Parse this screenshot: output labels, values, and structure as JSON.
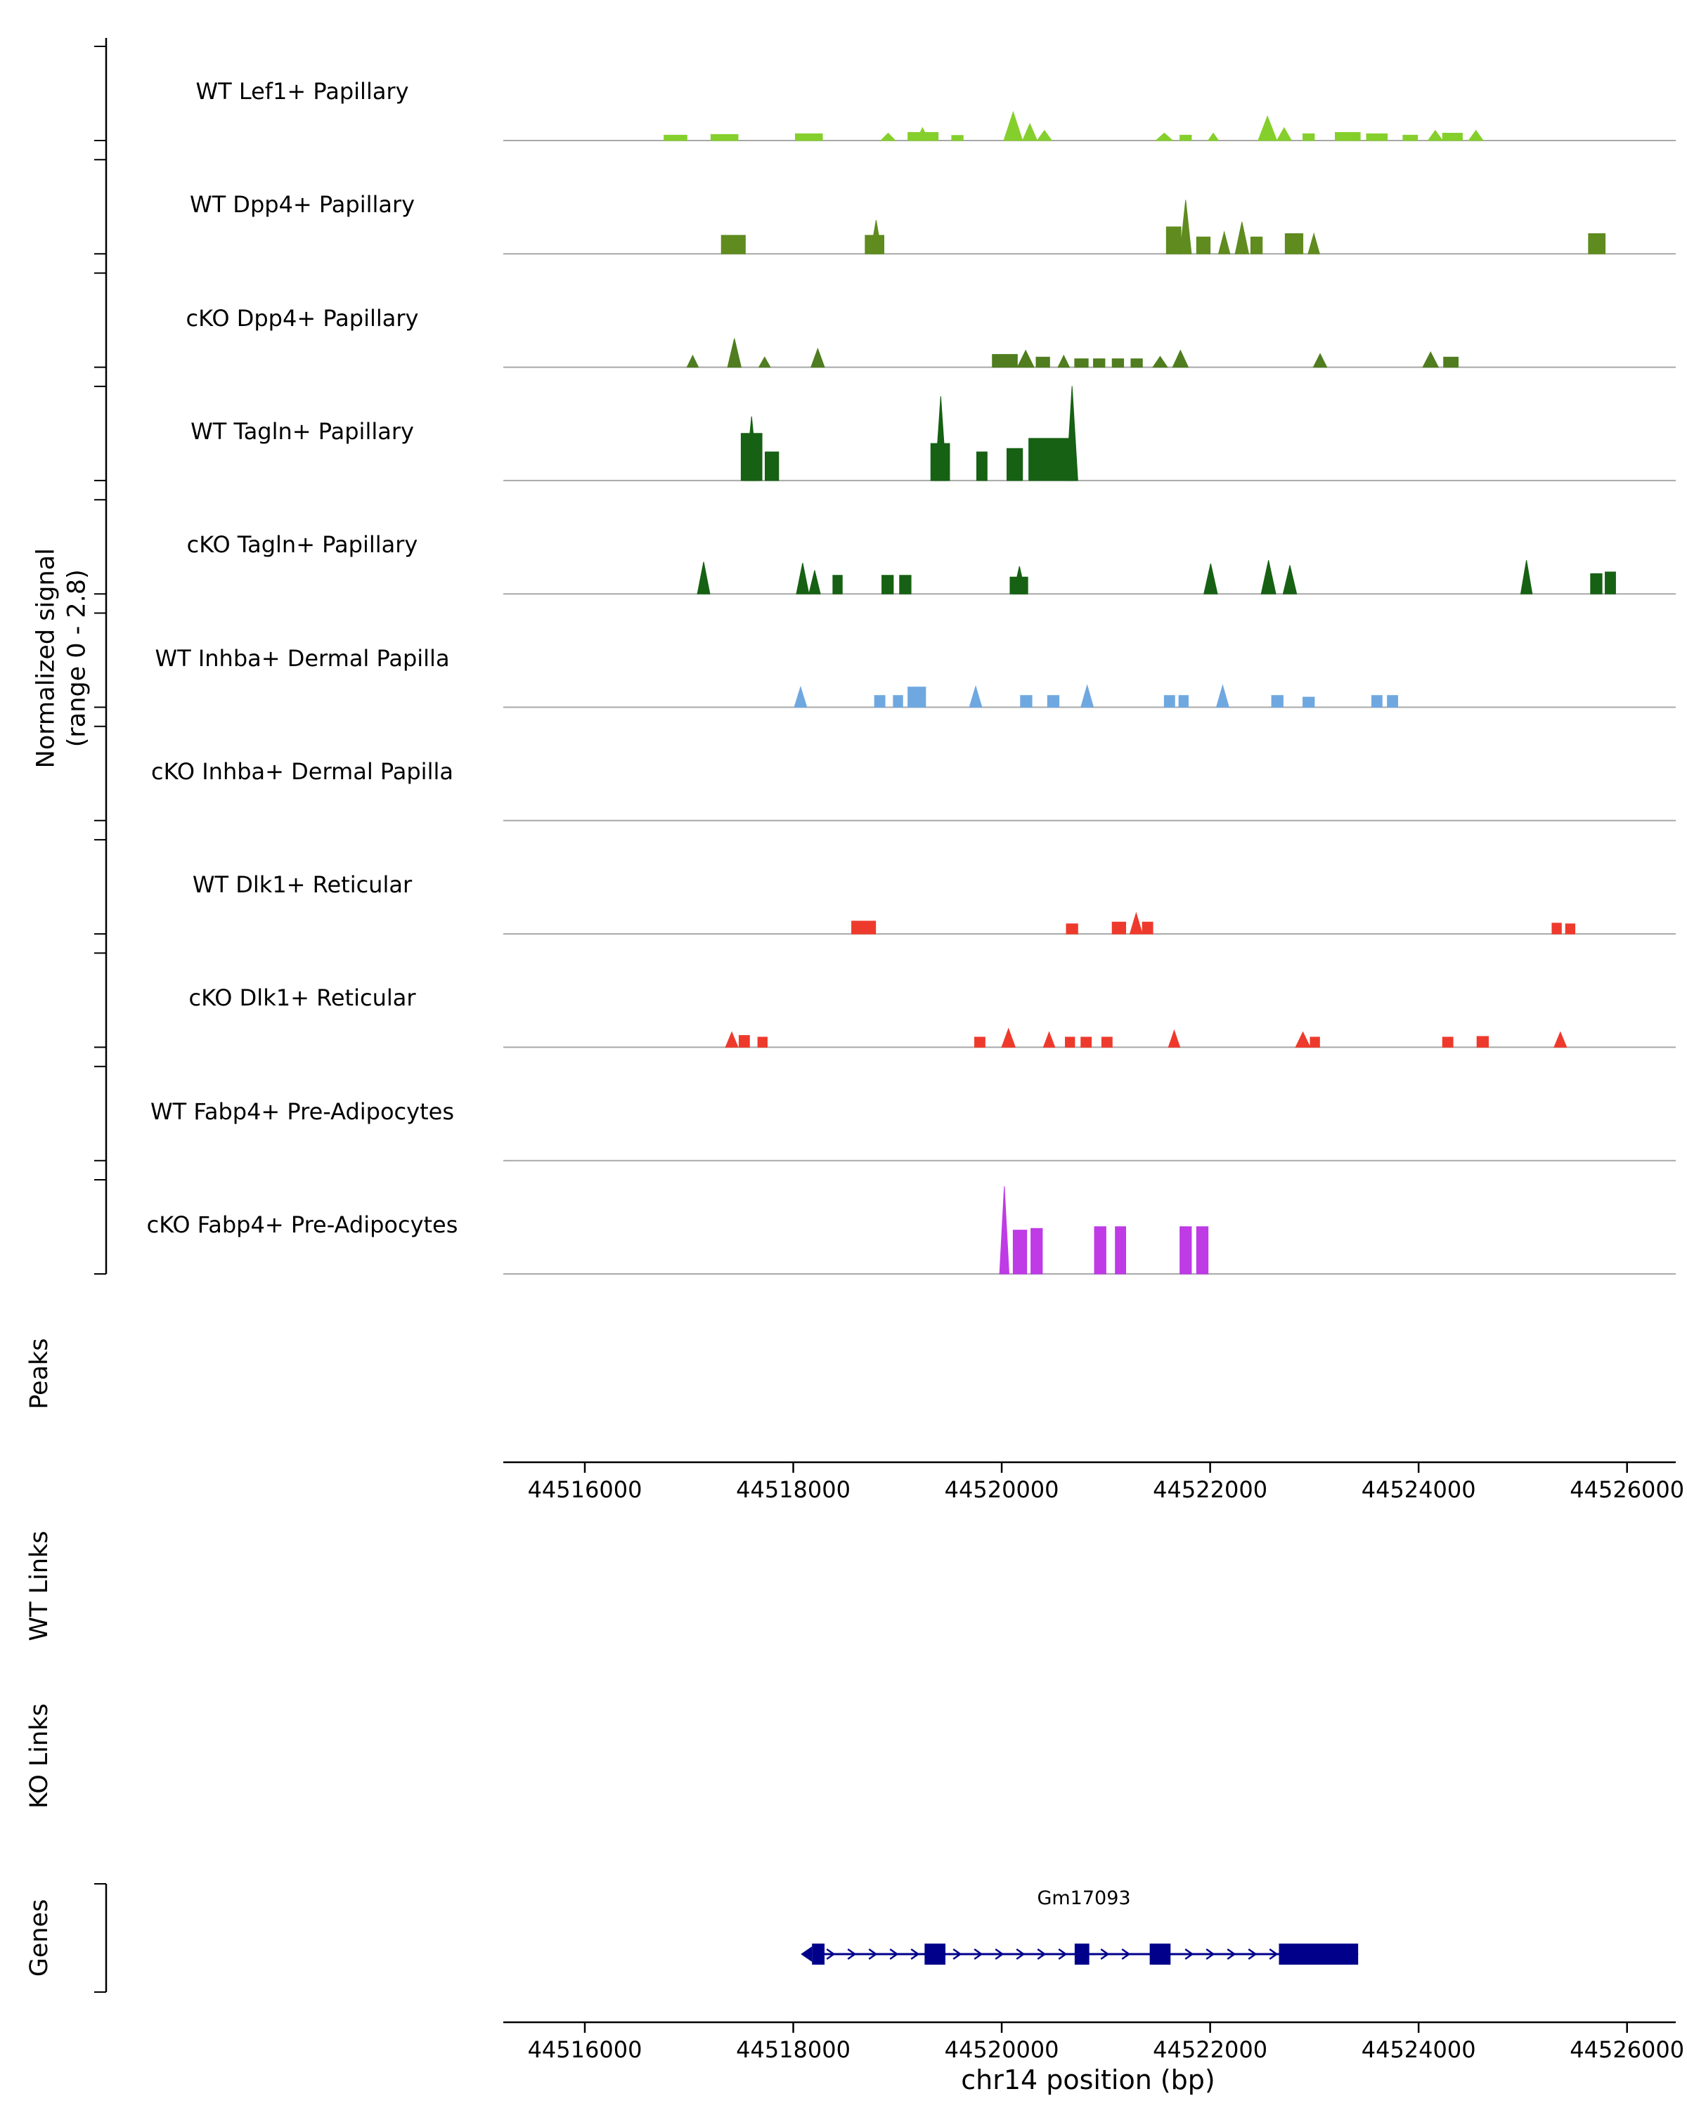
{
  "chart_data": {
    "type": "area",
    "chart_kind": "genome-browser-signal-tracks",
    "ylabel_line1": "Normalized signal",
    "ylabel_line2": "(range 0 - 2.8)",
    "xlabel": "chr14 position (bp)",
    "section_labels": {
      "peaks": "Peaks",
      "wt_links": "WT Links",
      "ko_links": "KO Links",
      "genes": "Genes"
    },
    "x_axis": {
      "chrom": "chr14",
      "view_start": 44515200,
      "view_end": 44526470,
      "ticks": [
        44516000,
        44518000,
        44520000,
        44522000,
        44524000,
        44526000
      ],
      "tick_labels": [
        "44516000",
        "44518000",
        "44520000",
        "44522000",
        "44524000",
        "44526000"
      ]
    },
    "signal_range": [
      0,
      2.8
    ],
    "peaks_track": [],
    "links": {
      "wt": [],
      "ko": []
    },
    "tracks": [
      {
        "label": "WT Lef1+ Papillary",
        "color": "#85cf2c",
        "peaks": [
          [
            44516760,
            44516980,
            0.16,
            "r"
          ],
          [
            44517210,
            44517470,
            0.18,
            "r"
          ],
          [
            44518020,
            44518280,
            0.2,
            "r"
          ],
          [
            44518840,
            44518980,
            0.22,
            "t"
          ],
          [
            44519100,
            44519390,
            0.24,
            "r"
          ],
          [
            44519180,
            44519300,
            0.38,
            "t"
          ],
          [
            44519520,
            44519630,
            0.15,
            "r"
          ],
          [
            44520020,
            44520200,
            0.85,
            "t"
          ],
          [
            44520200,
            44520340,
            0.5,
            "t"
          ],
          [
            44520340,
            44520480,
            0.3,
            "t"
          ],
          [
            44521480,
            44521640,
            0.22,
            "t"
          ],
          [
            44521710,
            44521820,
            0.16,
            "r"
          ],
          [
            44521980,
            44522080,
            0.22,
            "t"
          ],
          [
            44522460,
            44522640,
            0.72,
            "t"
          ],
          [
            44522640,
            44522780,
            0.38,
            "t"
          ],
          [
            44522890,
            44523000,
            0.2,
            "r"
          ],
          [
            44523200,
            44523440,
            0.24,
            "r"
          ],
          [
            44523500,
            44523700,
            0.2,
            "r"
          ],
          [
            44523850,
            44523990,
            0.16,
            "r"
          ],
          [
            44524090,
            44524230,
            0.3,
            "t"
          ],
          [
            44524230,
            44524420,
            0.22,
            "r"
          ],
          [
            44524480,
            44524620,
            0.3,
            "t"
          ]
        ]
      },
      {
        "label": "WT Dpp4+ Papillary",
        "color": "#5f8b1f",
        "peaks": [
          [
            44517310,
            44517540,
            0.55,
            "r"
          ],
          [
            44518690,
            44518870,
            0.55,
            "r"
          ],
          [
            44518740,
            44518850,
            1.0,
            "t"
          ],
          [
            44521580,
            44521720,
            0.8,
            "r"
          ],
          [
            44521710,
            44521820,
            1.6,
            "t"
          ],
          [
            44521870,
            44522000,
            0.5,
            "r"
          ],
          [
            44522080,
            44522190,
            0.65,
            "t"
          ],
          [
            44522240,
            44522370,
            0.95,
            "t"
          ],
          [
            44522390,
            44522500,
            0.5,
            "r"
          ],
          [
            44522720,
            44522890,
            0.6,
            "r"
          ],
          [
            44522940,
            44523050,
            0.6,
            "t"
          ],
          [
            44525630,
            44525790,
            0.6,
            "r"
          ]
        ]
      },
      {
        "label": "cKO Dpp4+ Papillary",
        "color": "#4f7d1f",
        "peaks": [
          [
            44516980,
            44517090,
            0.35,
            "t"
          ],
          [
            44517370,
            44517500,
            0.85,
            "t"
          ],
          [
            44517670,
            44517780,
            0.3,
            "t"
          ],
          [
            44518170,
            44518300,
            0.55,
            "t"
          ],
          [
            44519910,
            44520150,
            0.38,
            "r"
          ],
          [
            44520150,
            44520310,
            0.5,
            "t"
          ],
          [
            44520330,
            44520460,
            0.3,
            "r"
          ],
          [
            44520540,
            44520650,
            0.35,
            "t"
          ],
          [
            44520700,
            44520830,
            0.25,
            "r"
          ],
          [
            44520880,
            44520990,
            0.25,
            "r"
          ],
          [
            44521060,
            44521170,
            0.25,
            "r"
          ],
          [
            44521240,
            44521350,
            0.25,
            "r"
          ],
          [
            44521450,
            44521590,
            0.32,
            "t"
          ],
          [
            44521640,
            44521790,
            0.5,
            "t"
          ],
          [
            44522990,
            44523120,
            0.4,
            "t"
          ],
          [
            44524040,
            44524190,
            0.45,
            "t"
          ],
          [
            44524240,
            44524380,
            0.3,
            "r"
          ]
        ]
      },
      {
        "label": "WT Tagln+ Papillary",
        "color": "#166113",
        "peaks": [
          [
            44517500,
            44517700,
            1.4,
            "r"
          ],
          [
            44517540,
            44517660,
            1.9,
            "t"
          ],
          [
            44517730,
            44517860,
            0.85,
            "r"
          ],
          [
            44519320,
            44519500,
            1.1,
            "r"
          ],
          [
            44519360,
            44519470,
            2.5,
            "t"
          ],
          [
            44519760,
            44519860,
            0.85,
            "r"
          ],
          [
            44520050,
            44520200,
            0.95,
            "r"
          ],
          [
            44520260,
            44520700,
            1.25,
            "r"
          ],
          [
            44520620,
            44520730,
            2.8,
            "t"
          ]
        ]
      },
      {
        "label": "cKO Tagln+ Papillary",
        "color": "#166113",
        "peaks": [
          [
            44517080,
            44517200,
            0.95,
            "t"
          ],
          [
            44518030,
            44518150,
            0.92,
            "t"
          ],
          [
            44518150,
            44518260,
            0.7,
            "t"
          ],
          [
            44518380,
            44518470,
            0.55,
            "r"
          ],
          [
            44518850,
            44518960,
            0.55,
            "r"
          ],
          [
            44519020,
            44519130,
            0.55,
            "r"
          ],
          [
            44520080,
            44520250,
            0.5,
            "r"
          ],
          [
            44520110,
            44520230,
            0.82,
            "t"
          ],
          [
            44521940,
            44522070,
            0.9,
            "t"
          ],
          [
            44522490,
            44522630,
            1.0,
            "t"
          ],
          [
            44522700,
            44522830,
            0.85,
            "t"
          ],
          [
            44524980,
            44525090,
            1.0,
            "t"
          ],
          [
            44525650,
            44525760,
            0.6,
            "r"
          ],
          [
            44525790,
            44525890,
            0.65,
            "r"
          ]
        ]
      },
      {
        "label": "WT Inhba+ Dermal Papilla",
        "color": "#6fa8e0",
        "peaks": [
          [
            44518010,
            44518130,
            0.6,
            "t"
          ],
          [
            44518780,
            44518880,
            0.35,
            "r"
          ],
          [
            44518960,
            44519050,
            0.35,
            "r"
          ],
          [
            44519100,
            44519270,
            0.6,
            "r"
          ],
          [
            44519690,
            44519810,
            0.62,
            "t"
          ],
          [
            44520180,
            44520290,
            0.35,
            "r"
          ],
          [
            44520440,
            44520550,
            0.35,
            "r"
          ],
          [
            44520760,
            44520880,
            0.65,
            "t"
          ],
          [
            44521560,
            44521660,
            0.35,
            "r"
          ],
          [
            44521700,
            44521790,
            0.35,
            "r"
          ],
          [
            44522060,
            44522180,
            0.65,
            "t"
          ],
          [
            44522590,
            44522700,
            0.35,
            "r"
          ],
          [
            44522890,
            44523000,
            0.3,
            "r"
          ],
          [
            44523550,
            44523650,
            0.35,
            "r"
          ],
          [
            44523700,
            44523800,
            0.35,
            "r"
          ]
        ]
      },
      {
        "label": "cKO Inhba+ Dermal Papilla",
        "color": "#6fa8e0",
        "peaks": []
      },
      {
        "label": "WT Dlk1+ Reticular",
        "color": "#ee3a2c",
        "peaks": [
          [
            44518560,
            44518790,
            0.38,
            "r"
          ],
          [
            44520620,
            44520730,
            0.3,
            "r"
          ],
          [
            44521060,
            44521190,
            0.35,
            "r"
          ],
          [
            44521230,
            44521350,
            0.62,
            "t"
          ],
          [
            44521350,
            44521450,
            0.35,
            "r"
          ],
          [
            44525280,
            44525370,
            0.32,
            "r"
          ],
          [
            44525410,
            44525500,
            0.3,
            "r"
          ]
        ]
      },
      {
        "label": "cKO Dlk1+ Reticular",
        "color": "#ee3a2c",
        "peaks": [
          [
            44517350,
            44517470,
            0.45,
            "t"
          ],
          [
            44517480,
            44517580,
            0.35,
            "r"
          ],
          [
            44517660,
            44517750,
            0.3,
            "r"
          ],
          [
            44519740,
            44519840,
            0.3,
            "r"
          ],
          [
            44520000,
            44520130,
            0.55,
            "t"
          ],
          [
            44520400,
            44520510,
            0.45,
            "t"
          ],
          [
            44520610,
            44520700,
            0.3,
            "r"
          ],
          [
            44520760,
            44520860,
            0.3,
            "r"
          ],
          [
            44520960,
            44521060,
            0.3,
            "r"
          ],
          [
            44521600,
            44521710,
            0.5,
            "t"
          ],
          [
            44522820,
            44522960,
            0.45,
            "t"
          ],
          [
            44522960,
            44523050,
            0.3,
            "r"
          ],
          [
            44524230,
            44524330,
            0.3,
            "r"
          ],
          [
            44524560,
            44524670,
            0.32,
            "r"
          ],
          [
            44525300,
            44525420,
            0.45,
            "t"
          ]
        ]
      },
      {
        "label": "WT Fabp4+ Pre-Adipocytes",
        "color": "#be3be6",
        "peaks": []
      },
      {
        "label": "cKO Fabp4+ Pre-Adipocytes",
        "color": "#be3be6",
        "peaks": [
          [
            44519980,
            44520070,
            2.6,
            "t"
          ],
          [
            44520110,
            44520240,
            1.3,
            "r"
          ],
          [
            44520280,
            44520390,
            1.35,
            "r"
          ],
          [
            44520890,
            44521000,
            1.4,
            "r"
          ],
          [
            44521090,
            44521190,
            1.4,
            "r"
          ],
          [
            44521710,
            44521820,
            1.4,
            "r"
          ],
          [
            44521870,
            44521980,
            1.4,
            "r"
          ]
        ]
      }
    ],
    "gene": {
      "name": "Gm17093",
      "color": "#00008b",
      "chrom": "chr14",
      "start": 44518180,
      "end": 44523420,
      "strand": "+",
      "exons": [
        [
          44518180,
          44518300
        ],
        [
          44519260,
          44519460
        ],
        [
          44520700,
          44520840
        ],
        [
          44521420,
          44521620
        ],
        [
          44522660,
          44523420
        ]
      ]
    }
  }
}
